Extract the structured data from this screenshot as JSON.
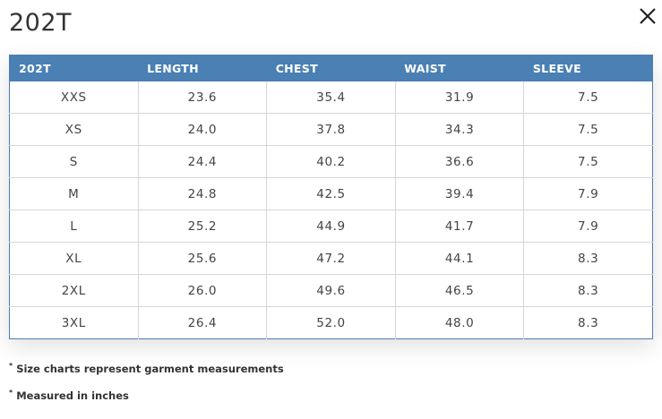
{
  "title": "202T",
  "close_icon": "close-icon",
  "table": {
    "headers": [
      "202T",
      "LENGTH",
      "CHEST",
      "WAIST",
      "SLEEVE"
    ],
    "rows": [
      [
        "XXS",
        "23.6",
        "35.4",
        "31.9",
        "7.5"
      ],
      [
        "XS",
        "24.0",
        "37.8",
        "34.3",
        "7.5"
      ],
      [
        "S",
        "24.4",
        "40.2",
        "36.6",
        "7.5"
      ],
      [
        "M",
        "24.8",
        "42.5",
        "39.4",
        "7.9"
      ],
      [
        "L",
        "25.2",
        "44.9",
        "41.7",
        "7.9"
      ],
      [
        "XL",
        "25.6",
        "47.2",
        "44.1",
        "8.3"
      ],
      [
        "2XL",
        "26.0",
        "49.6",
        "46.5",
        "8.3"
      ],
      [
        "3XL",
        "26.4",
        "52.0",
        "48.0",
        "8.3"
      ]
    ]
  },
  "notes": [
    "Size charts represent garment measurements",
    "Measured in inches"
  ],
  "colors": {
    "header_bg": "#4a80b4",
    "header_text": "#ffffff",
    "grid_line": "#d6d6d6"
  }
}
